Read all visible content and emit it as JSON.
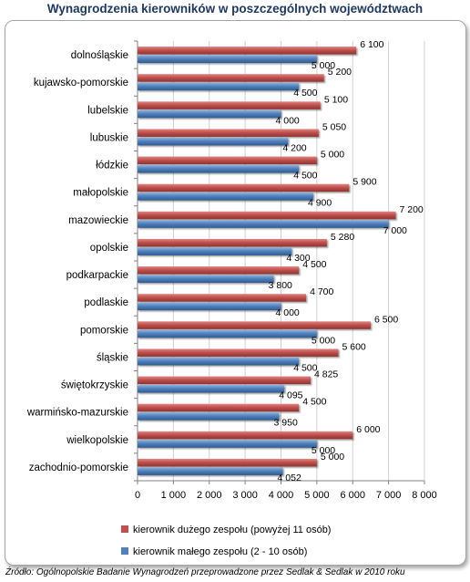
{
  "source_note": "Źródło: Ogólnopolskie Badanie Wynagrodzeń przeprowadzone przez Sedlak & Sedlak w 2010 roku",
  "colors": {
    "large_team": "#c0504d",
    "small_team": "#4f81bd",
    "title": "#1f3864"
  },
  "chart_data": {
    "type": "bar",
    "orientation": "horizontal",
    "title": "Wynagrodzenia kierowników w poszczególnych województwach",
    "categories": [
      "dolnośląskie",
      "kujawsko-pomorskie",
      "lubelskie",
      "lubuskie",
      "łódzkie",
      "małopolskie",
      "mazowieckie",
      "opolskie",
      "podkarpackie",
      "podlaskie",
      "pomorskie",
      "śląskie",
      "świętokrzyskie",
      "warmińsko-mazurskie",
      "wielkopolskie",
      "zachodnio-pomorskie"
    ],
    "series": [
      {
        "name": "kierownik dużego zespołu (powyżej 11 osób)",
        "values": [
          6100,
          5200,
          5100,
          5050,
          5000,
          5900,
          7200,
          5280,
          4500,
          4700,
          6500,
          5600,
          4825,
          4500,
          6000,
          5000
        ],
        "labels": [
          "6 100",
          "5 200",
          "5 100",
          "5 050",
          "5 000",
          "5 900",
          "7 200",
          "5 280",
          "4 500",
          "4 700",
          "6 500",
          "5 600",
          "4 825",
          "4 500",
          "6 000",
          "5 000"
        ]
      },
      {
        "name": "kierownik małego zespołu (2 - 10 osób)",
        "values": [
          5000,
          4500,
          4000,
          4200,
          4500,
          4900,
          7000,
          4300,
          3800,
          4000,
          5000,
          4500,
          4095,
          3950,
          5000,
          4052
        ],
        "labels": [
          "5 000",
          "4 500",
          "4 000",
          "4 200",
          "4 500",
          "4 900",
          "7 000",
          "4 300",
          "3 800",
          "4 000",
          "5 000",
          "4 500",
          "4 095",
          "3 950",
          "5 000",
          "4 052"
        ]
      }
    ],
    "xlim": [
      0,
      8000
    ],
    "xticks": [
      0,
      1000,
      2000,
      3000,
      4000,
      5000,
      6000,
      7000,
      8000
    ],
    "xtick_labels": [
      "0",
      "1 000",
      "2 000",
      "3 000",
      "4 000",
      "5 000",
      "6 000",
      "7 000",
      "8 000"
    ],
    "grid": true,
    "legend_position": "bottom-left"
  }
}
